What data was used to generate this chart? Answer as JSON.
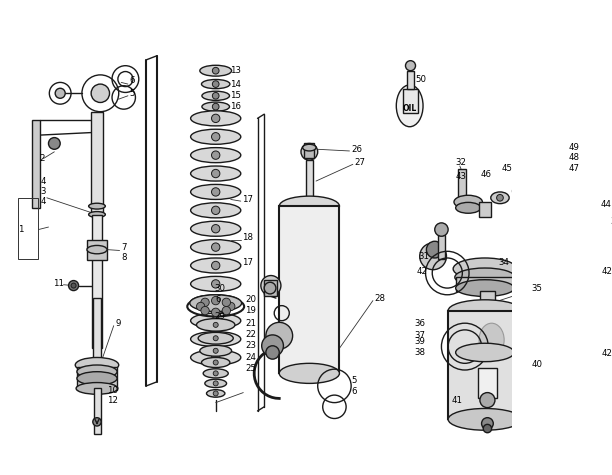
{
  "bg_color": "#ffffff",
  "lc": "#1a1a1a",
  "lw": 1.0,
  "figsize": [
    6.12,
    4.75
  ],
  "dpi": 100
}
